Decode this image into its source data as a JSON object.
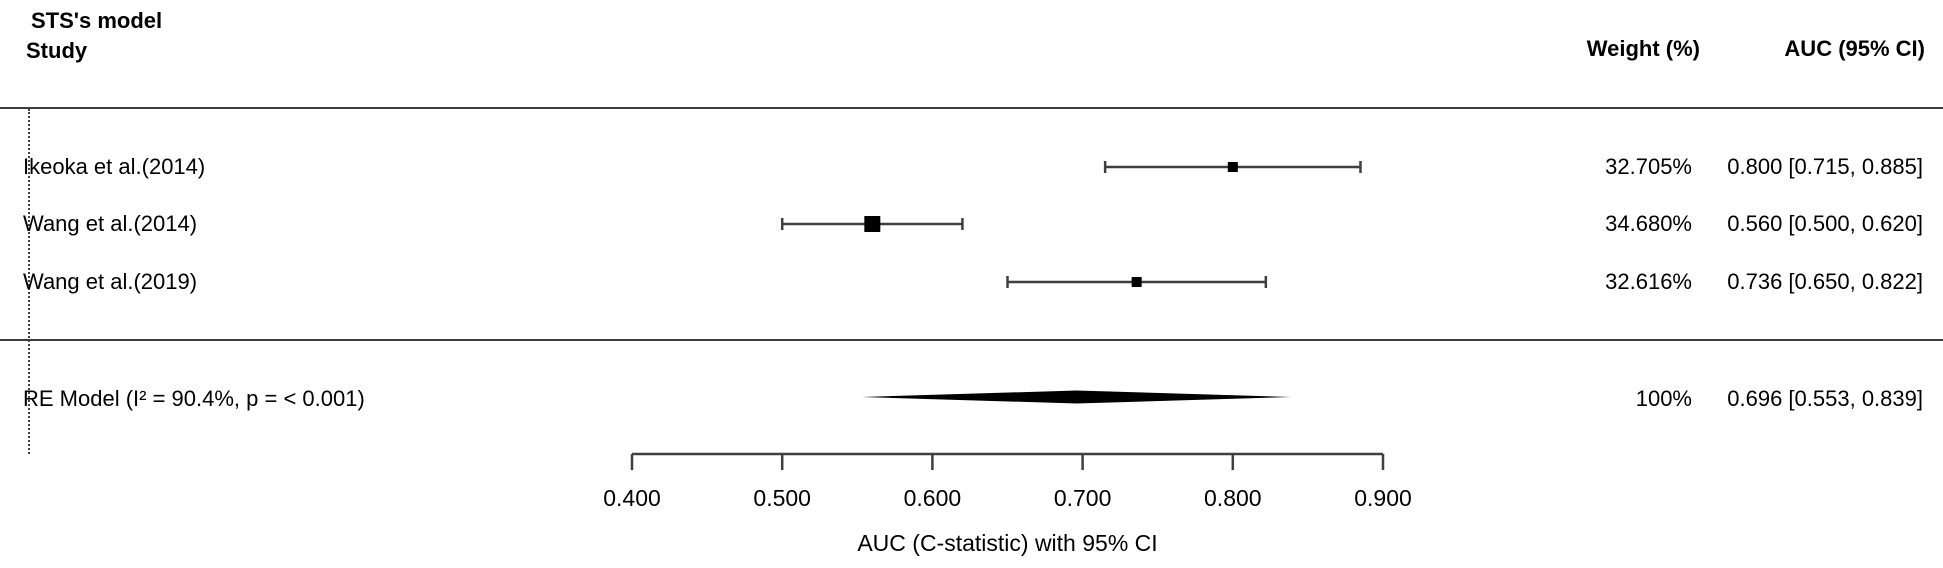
{
  "header": {
    "model_title": "STS's model",
    "study_column_label": "Study",
    "weight_column_label": "Weight (%)",
    "auc_column_label": "AUC (95% CI)"
  },
  "colors": {
    "line": "#3f3f3f",
    "marker": "#000000",
    "text": "#000000",
    "separator": "#3c3c3c"
  },
  "chart_data": {
    "type": "forest",
    "xlabel": "AUC (C-statistic) with 95% CI",
    "axis": {
      "range": [
        0.4,
        0.9
      ],
      "ticks": [
        0.4,
        0.5,
        0.6,
        0.7,
        0.8,
        0.9
      ],
      "tick_labels": [
        "0.400",
        "0.500",
        "0.600",
        "0.700",
        "0.800",
        "0.900"
      ]
    },
    "studies": [
      {
        "label": "Ikeoka et al.(2014)",
        "weight": "32.705%",
        "auc_text": "0.800 [0.715, 0.885]",
        "est": 0.8,
        "lo": 0.715,
        "hi": 0.885
      },
      {
        "label": "Wang et al.(2014)",
        "weight": "34.680%",
        "auc_text": "0.560 [0.500, 0.620]",
        "est": 0.56,
        "lo": 0.5,
        "hi": 0.62
      },
      {
        "label": "Wang et al.(2019)",
        "weight": "32.616%",
        "auc_text": "0.736 [0.650, 0.822]",
        "est": 0.736,
        "lo": 0.65,
        "hi": 0.822
      }
    ],
    "summary": {
      "label": "RE Model (I² = 90.4%, p = < 0.001)",
      "weight": "100%",
      "auc_text": "0.696 [0.553, 0.839]",
      "est": 0.696,
      "lo": 0.553,
      "hi": 0.839
    }
  }
}
